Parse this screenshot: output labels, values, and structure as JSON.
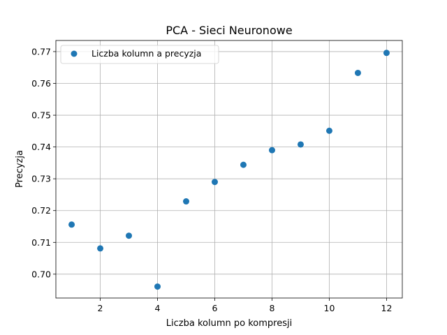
{
  "chart_data": {
    "type": "scatter",
    "title": "PCA - Sieci Neuronowe",
    "xlabel": "Liczba kolumn po kompresji",
    "ylabel": "Precyzja",
    "xlim": [
      0.45,
      12.55
    ],
    "ylim": [
      0.6925,
      0.7735
    ],
    "xticks": [
      2,
      4,
      6,
      8,
      10,
      12
    ],
    "yticks": [
      0.7,
      0.71,
      0.72,
      0.73,
      0.74,
      0.75,
      0.76,
      0.77
    ],
    "ytick_labels": [
      "0.70",
      "0.71",
      "0.72",
      "0.73",
      "0.74",
      "0.75",
      "0.76",
      "0.77"
    ],
    "grid": true,
    "legend": {
      "placement": "top-left",
      "entries": [
        "Liczba kolumn a precyzja"
      ]
    },
    "series": [
      {
        "name": "Liczba kolumn a precyzja",
        "color": "#1f77b4",
        "x": [
          1,
          2,
          3,
          4,
          5,
          6,
          7,
          8,
          9,
          10,
          11,
          12
        ],
        "y": [
          0.7156,
          0.7081,
          0.7121,
          0.6961,
          0.7229,
          0.729,
          0.7344,
          0.739,
          0.7408,
          0.7451,
          0.7633,
          0.7696
        ]
      }
    ]
  }
}
